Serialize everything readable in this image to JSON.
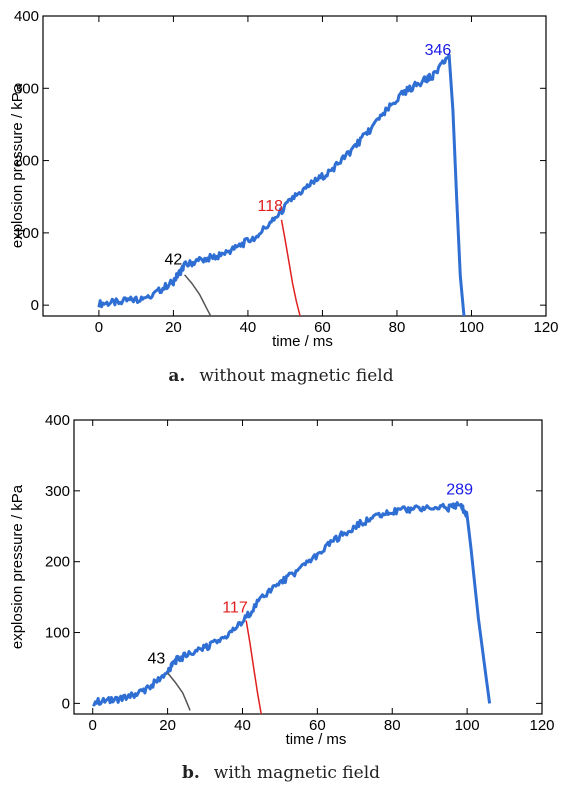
{
  "chart_data": [
    {
      "type": "line",
      "panel_letter": "a.",
      "caption": "without magnetic field",
      "xlabel": "time / ms",
      "ylabel": "explosion pressure / kPa",
      "xlim": [
        -15,
        120
      ],
      "ylim": [
        -15,
        400
      ],
      "xticks": [
        0,
        20,
        40,
        60,
        80,
        100,
        120
      ],
      "yticks": [
        0,
        100,
        200,
        300,
        400
      ],
      "grid": false,
      "series": [
        {
          "color": "#2f6fd4",
          "x": [
            0,
            5,
            10,
            15,
            20,
            23,
            27,
            32,
            37,
            42,
            47,
            52,
            57,
            62,
            67,
            72,
            77,
            82,
            87,
            90,
            94,
            95,
            96,
            97,
            98
          ],
          "y": [
            2,
            4,
            8,
            16,
            33,
            55,
            62,
            68,
            80,
            95,
            118,
            148,
            168,
            185,
            210,
            238,
            268,
            295,
            310,
            318,
            346,
            270,
            150,
            40,
            -15
          ]
        },
        {
          "color": "#e02020",
          "x": [
            49,
            50,
            51,
            52,
            53,
            54
          ],
          "y": [
            118,
            90,
            60,
            30,
            5,
            -15
          ]
        },
        {
          "color": "#555555",
          "x": [
            23,
            25,
            27,
            28,
            29,
            30
          ],
          "y": [
            42,
            30,
            15,
            5,
            -5,
            -15
          ]
        }
      ],
      "annotations": [
        {
          "text": "346",
          "x": 91,
          "y": 346,
          "color": "#1a1ae8"
        },
        {
          "text": "118",
          "x": 46,
          "y": 130,
          "color": "#e02020"
        },
        {
          "text": "42",
          "x": 20,
          "y": 56,
          "color": "#000000"
        }
      ]
    },
    {
      "type": "line",
      "panel_letter": "b.",
      "caption": "with magnetic field",
      "xlabel": "time / ms",
      "ylabel": "explosion pressure / kPa",
      "xlim": [
        -5,
        120
      ],
      "ylim": [
        -15,
        400
      ],
      "xticks": [
        0,
        20,
        40,
        60,
        80,
        100,
        120
      ],
      "yticks": [
        0,
        100,
        200,
        300,
        400
      ],
      "grid": false,
      "series": [
        {
          "color": "#2f6fd4",
          "x": [
            0,
            5,
            10,
            15,
            20,
            22,
            25,
            30,
            35,
            40,
            45,
            50,
            55,
            60,
            65,
            70,
            75,
            80,
            85,
            90,
            95,
            98,
            100,
            101,
            102,
            103,
            104,
            105,
            106
          ],
          "y": [
            2,
            4,
            10,
            22,
            45,
            60,
            68,
            78,
            92,
            115,
            148,
            170,
            188,
            210,
            232,
            250,
            262,
            270,
            274,
            276,
            276,
            282,
            265,
            220,
            170,
            120,
            80,
            40,
            0
          ]
        },
        {
          "color": "#e02020",
          "x": [
            41,
            42,
            43,
            44,
            45
          ],
          "y": [
            117,
            85,
            50,
            15,
            -15
          ]
        },
        {
          "color": "#555555",
          "x": [
            20,
            22,
            24,
            25,
            26
          ],
          "y": [
            43,
            30,
            15,
            3,
            -10
          ]
        }
      ],
      "annotations": [
        {
          "text": "289",
          "x": 98,
          "y": 295,
          "color": "#1a1ae8"
        },
        {
          "text": "117",
          "x": 38,
          "y": 128,
          "color": "#e02020"
        },
        {
          "text": "43",
          "x": 17,
          "y": 56,
          "color": "#000000"
        }
      ]
    }
  ]
}
